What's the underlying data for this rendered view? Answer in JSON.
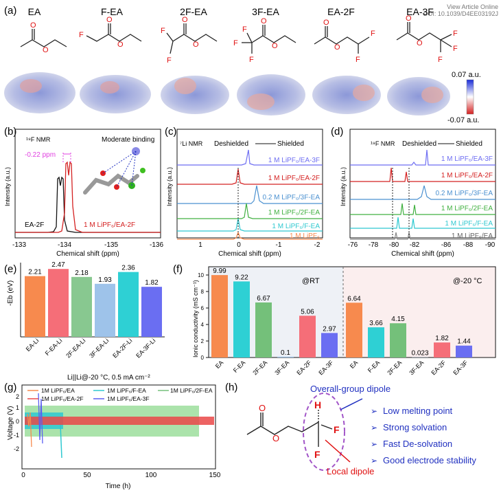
{
  "header": {
    "view_link": "View Article Online",
    "doi": "DOI: 10.1039/D4EE03192J"
  },
  "panel_a": {
    "label": "(a)",
    "molecules": [
      "EA",
      "F-EA",
      "2F-EA",
      "3F-EA",
      "EA-2F",
      "EA-3F"
    ],
    "scale_max": "0.07 a.u.",
    "scale_min": "-0.07 a.u."
  },
  "panel_b": {
    "label": "(b)",
    "nmr": "¹⁹F NMR",
    "binding": "Moderate binding",
    "shift": "-0.22 ppm",
    "label_black": "EA-2F",
    "label_red": "1 M LiPF₆/EA-2F",
    "ylabel": "Intensity (a.u.)",
    "xlabel": "Chemical shift (ppm)",
    "ticks": [
      "-133",
      "-134",
      "-135",
      "-136"
    ]
  },
  "panel_c": {
    "label": "(c)",
    "nmr": "⁷Li NMR",
    "deshielded": "Deshielded",
    "shielded": "Shielded",
    "ylabel": "Intensity (a.u.)",
    "xlabel": "Chemical shift (ppm)",
    "ticks": [
      "1",
      "0",
      "-1",
      "-2"
    ],
    "traces": [
      "1 M LiPF₆/EA-3F",
      "1 M LiPF₆/EA-2F",
      "0.2 M LiPF₆/3F-EA",
      "1 M LiPF₆/2F-EA",
      "1 M LiPF₆/F-EA",
      "1 M LiPF₆"
    ]
  },
  "panel_d": {
    "label": "(d)",
    "nmr": "¹⁹F NMR",
    "deshielded": "Deshielded",
    "shielded": "Shielded",
    "ylabel": "Intensity (a.u.)",
    "xlabel": "Chemical shift (ppm)",
    "ticks": [
      "-76",
      "-78",
      "-80",
      "-82",
      "-86",
      "-88",
      "-90"
    ],
    "traces": [
      "1 M LiPF₆/EA-3F",
      "1 M LiPF₆/EA-2F",
      "0.2 M LiPF₆/3F-EA",
      "1 M LiPF₆/2F-EA",
      "1 M LiPF₆/F-EA",
      "1 M LiPF₆/EA"
    ]
  },
  "panel_e": {
    "label": "(e)",
    "ylabel": "-Eb (eV)"
  },
  "panel_f": {
    "label": "(f)",
    "ylabel": "Ionic conductivity (mS cm⁻¹)",
    "rt": "@RT",
    "cold": "@-20 °C"
  },
  "panel_g": {
    "label": "(g)",
    "title": "Li||Li@-20 °C, 0.5 mA cm⁻²",
    "ylabel": "Voltage (V)",
    "xlabel": "Time (h)",
    "xticks": [
      "0",
      "50",
      "100",
      "150"
    ],
    "yticks": [
      "2",
      "1",
      "0",
      "-1",
      "-2"
    ],
    "legend": [
      "1M LiPF₆/EA",
      "1M LiPF₆/F-EA",
      "1M LiPF₆/2F-EA",
      "1M LiPF₆/EA-2F",
      "1M LiPF₆/EA-3F"
    ]
  },
  "panel_h": {
    "label": "(h)",
    "group_dipole": "Overall-group dipole",
    "local_dipole": "Local dipole",
    "props": [
      "Low melting point",
      "Strong solvation",
      "Fast De-solvation",
      "Good electrode stability"
    ]
  },
  "chart_data": [
    {
      "type": "bar",
      "title": "",
      "categories": [
        "EA-Li",
        "F-EA-Li",
        "2F-EA-Li",
        "3F-EA-Li",
        "EA-2F-Li",
        "EA-3F-Li"
      ],
      "values": [
        2.21,
        2.47,
        2.18,
        1.93,
        2.36,
        1.82
      ],
      "value_labels": [
        "2.21",
        "2.47",
        "2.18",
        "1.93",
        "2.36",
        "1.82"
      ],
      "ylabel": "-Eb (eV)",
      "ylim": [
        0,
        2.6
      ],
      "colors": [
        "#f78a4e",
        "#f56e78",
        "#88c890",
        "#9ec3ea",
        "#2ed0d4",
        "#6a6ef2"
      ]
    },
    {
      "type": "bar",
      "title": "",
      "categories": [
        "EA",
        "F-EA",
        "2F-EA",
        "3F-EA",
        "EA-2F",
        "EA-3F",
        "EA",
        "F-EA",
        "2F-EA",
        "3F-EA",
        "EA-2F",
        "EA-3F"
      ],
      "values": [
        9.99,
        9.22,
        6.67,
        0.1,
        5.06,
        2.97,
        6.64,
        3.66,
        4.15,
        0.023,
        1.82,
        1.44
      ],
      "value_labels": [
        "9.99",
        "9.22",
        "6.67",
        "0.1",
        "5.06",
        "2.97",
        "6.64",
        "3.66",
        "4.15",
        "0.023",
        "1.82",
        "1.44"
      ],
      "ylabel": "Ionic conductivity (mS cm⁻¹)",
      "ylim": [
        0,
        11
      ],
      "yticks": [
        "0",
        "2",
        "4",
        "6",
        "8",
        "10"
      ],
      "colors": [
        "#f78a4e",
        "#2ed0d4",
        "#74c07a",
        "#9ec3ea",
        "#f56e78",
        "#6a6ef2",
        "#f78a4e",
        "#2ed0d4",
        "#74c07a",
        "#9ec3ea",
        "#f56e78",
        "#6a6ef2"
      ]
    }
  ]
}
